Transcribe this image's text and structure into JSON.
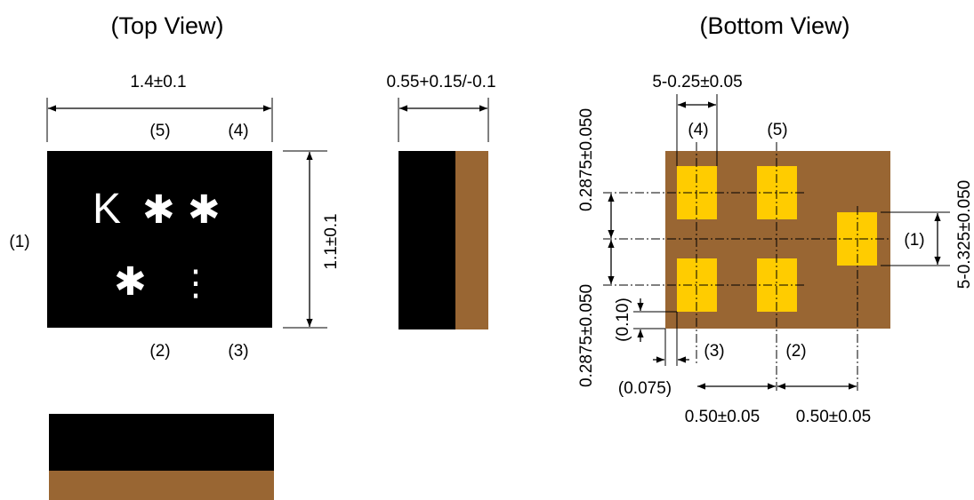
{
  "views": {
    "top_title": "(Top View)",
    "bottom_title": "(Bottom View)"
  },
  "top_view": {
    "width_dim": "1.4±0.1",
    "height_dim": "1.1±0.1",
    "marking_line1": "K",
    "marking_stars": "✱ ✱",
    "marking_line2_star": "✱",
    "marking_line2_dots": "⋮",
    "pin_labels": {
      "p1": "(1)",
      "p2": "(2)",
      "p3": "(3)",
      "p4": "(4)",
      "p5": "(5)"
    }
  },
  "side_view": {
    "thickness_dim": "0.55+0.15/-0.1"
  },
  "bottom_view": {
    "pad_width_dim": "5-0.25±0.05",
    "pad_height_dim": "5-0.325±0.050",
    "pitch_upper_dim": "0.2875±0.050",
    "pitch_lower_dim": "0.2875±0.050",
    "offset_y_dim": "(0.10)",
    "offset_x_dim": "(0.075)",
    "pitch_x_left_dim": "0.50±0.05",
    "pitch_x_right_dim": "0.50±0.05",
    "pin_labels": {
      "p1": "(1)",
      "p2": "(2)",
      "p3": "(3)",
      "p4": "(4)",
      "p5": "(5)"
    }
  },
  "colors": {
    "body": "#000000",
    "substrate": "#996633",
    "pad": "#ffcc00",
    "marking": "#ffffff"
  }
}
